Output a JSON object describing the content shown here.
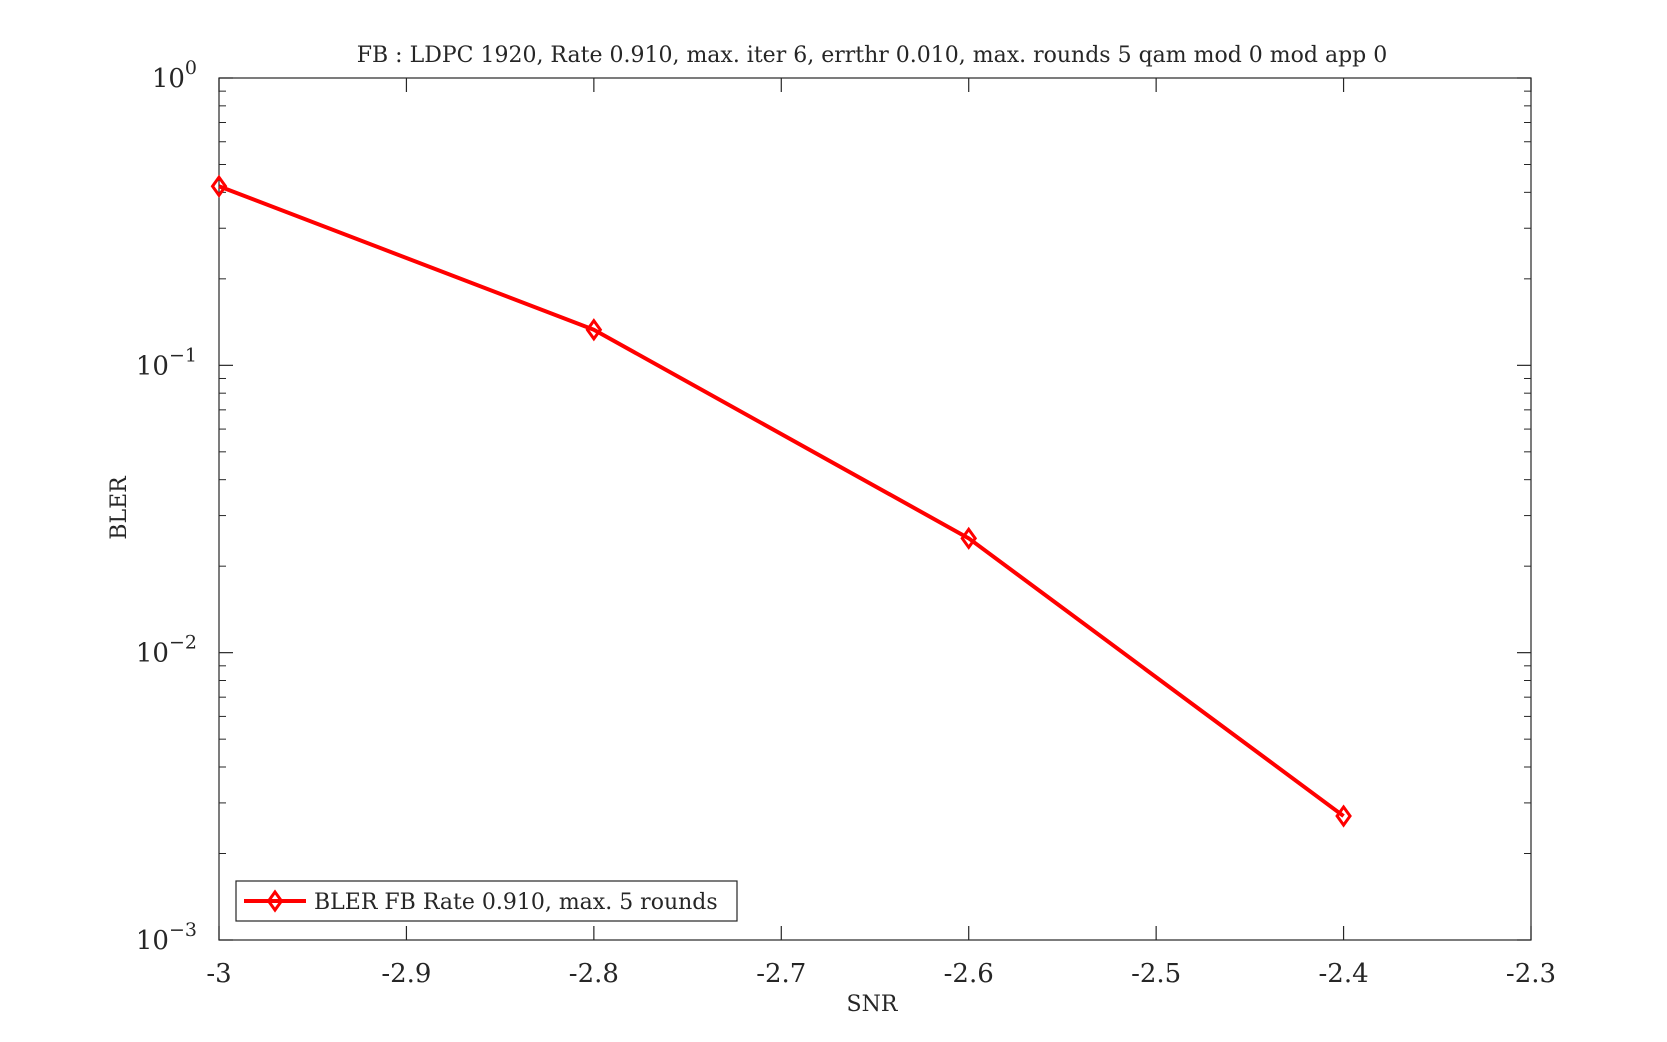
{
  "chart_data": {
    "type": "line",
    "title": "FB : LDPC 1920, Rate 0.910, max. iter 6, errthr 0.010, max. rounds 5 qam mod 0 mod app 0",
    "xlabel": "SNR",
    "ylabel": "BLER",
    "xlim": [
      -3,
      -2.3
    ],
    "ylim": [
      0.001,
      1
    ],
    "yscale": "log",
    "x_ticks": [
      -3,
      -2.9,
      -2.8,
      -2.7,
      -2.6,
      -2.5,
      -2.4,
      -2.3
    ],
    "x_tick_labels": [
      "-3",
      "-2.9",
      "-2.8",
      "-2.7",
      "-2.6",
      "-2.5",
      "-2.4",
      "-2.3"
    ],
    "y_ticks": [
      {
        "value": 1,
        "base": "10",
        "exp": "0"
      },
      {
        "value": 0.1,
        "base": "10",
        "exp": "−1"
      },
      {
        "value": 0.01,
        "base": "10",
        "exp": "−2"
      },
      {
        "value": 0.001,
        "base": "10",
        "exp": "−3"
      }
    ],
    "grid": false,
    "legend_position": "bottom-left",
    "series": [
      {
        "name": "BLER FB Rate 0.910, max. 5 rounds",
        "color": "#ff0000",
        "marker": "diamond",
        "x": [
          -3,
          -2.8,
          -2.6,
          -2.4
        ],
        "y": [
          0.42,
          0.133,
          0.025,
          0.0027
        ]
      }
    ]
  }
}
